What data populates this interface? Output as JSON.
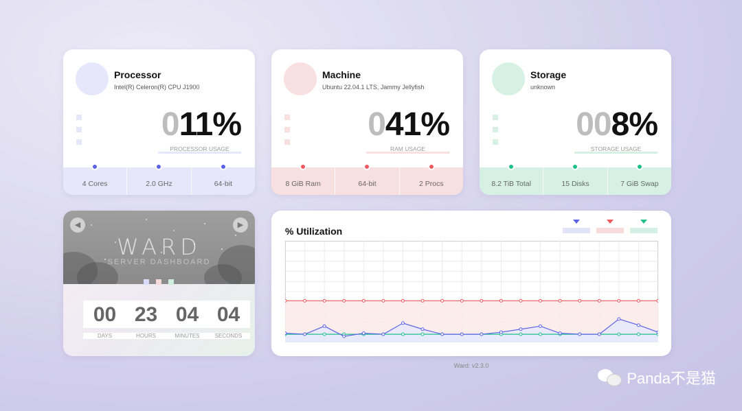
{
  "cards": [
    {
      "title": "Processor",
      "subtitle": "Intel(R) Celeron(R) CPU J1900",
      "dim_digits": "0",
      "value": "11%",
      "usage_label": "PROCESSOR USAGE",
      "accent": "#5b62e6",
      "light": "#e6e7fb",
      "footer": [
        "4 Cores",
        "2.0 GHz",
        "64-bit"
      ]
    },
    {
      "title": "Machine",
      "subtitle": "Ubuntu 22.04.1 LTS, Jammy Jellyfish",
      "dim_digits": "0",
      "value": "41%",
      "usage_label": "RAM USAGE",
      "accent": "#ee5a5f",
      "light": "#f8e0e0",
      "footer": [
        "8 GiB Ram",
        "64-bit",
        "2 Procs"
      ]
    },
    {
      "title": "Storage",
      "subtitle": "unknown",
      "dim_digits": "00",
      "value": "8%",
      "usage_label": "STORAGE USAGE",
      "accent": "#1fbf8a",
      "light": "#d6f1e4",
      "footer": [
        "8.2 TiB Total",
        "15 Disks",
        "7 GiB Swap"
      ]
    }
  ],
  "clock": {
    "title": "WARD",
    "subtitle": "SERVER DASHBOARD",
    "prev_icon": "chevron-left-icon",
    "next_icon": "chevron-right-icon",
    "units": [
      {
        "value": "00",
        "label": "DAYS"
      },
      {
        "value": "23",
        "label": "HOURS"
      },
      {
        "value": "04",
        "label": "MINUTES"
      },
      {
        "value": "04",
        "label": "SECONDS"
      }
    ]
  },
  "chart_data": {
    "type": "line",
    "title": "% Utilization",
    "ylim": [
      0,
      100
    ],
    "grid": true,
    "legend": "top-right",
    "x": [
      1,
      2,
      3,
      4,
      5,
      6,
      7,
      8,
      9,
      10,
      11,
      12,
      13,
      14,
      15,
      16,
      17,
      18,
      19,
      20
    ],
    "series": [
      {
        "color": "#ee5a5f",
        "fill": "#fbeaea",
        "values": [
          41,
          41,
          41,
          41,
          41,
          41,
          41,
          41,
          41,
          41,
          41,
          41,
          41,
          41,
          41,
          41,
          41,
          41,
          41,
          41
        ]
      },
      {
        "color": "#1fbf8a",
        "fill": "#e3f3ec",
        "values": [
          8,
          8,
          8,
          8,
          8,
          8,
          8,
          8,
          8,
          8,
          8,
          8,
          8,
          8,
          8,
          8,
          8,
          8,
          8,
          8
        ]
      },
      {
        "color": "#5b62e6",
        "fill": "#e6e7fb",
        "values": [
          9,
          8,
          16,
          6,
          9,
          8,
          19,
          13,
          8,
          8,
          8,
          10,
          13,
          16,
          9,
          8,
          8,
          23,
          17,
          10
        ]
      }
    ]
  },
  "footer": {
    "version": "Ward: v2.3.0",
    "watermark": "Panda不是猫"
  }
}
